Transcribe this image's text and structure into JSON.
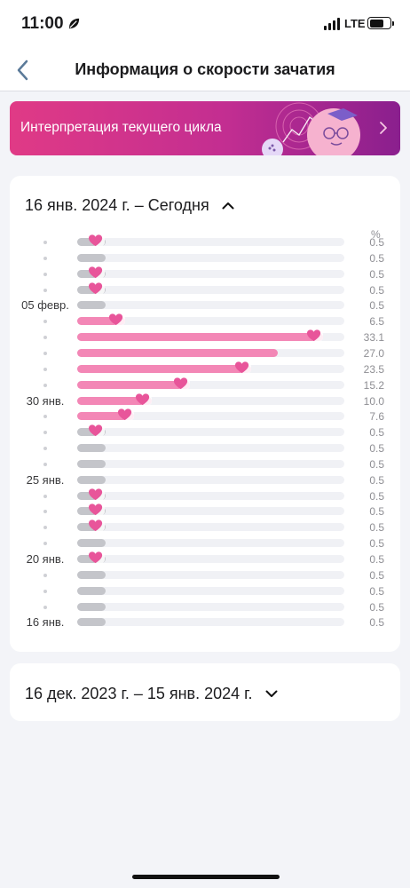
{
  "status_bar": {
    "time": "11:00",
    "network": "LTE"
  },
  "nav": {
    "title": "Информация о скорости зачатия",
    "back_icon": "chevron-left-icon"
  },
  "banner": {
    "text": "Интерпретация текущего цикла",
    "icon": "chevron-right-icon"
  },
  "colors": {
    "accent_pink": "#f387b6",
    "bar_grey": "#c4c5ca",
    "heart": "#e8559a"
  },
  "current_cycle": {
    "range_label": "16 янв. 2024 г. – Сегодня",
    "expanded": true,
    "unit": "%",
    "rows": [
      {
        "label": "",
        "value": "0.5",
        "heart": true
      },
      {
        "label": "",
        "value": "0.5",
        "heart": false
      },
      {
        "label": "",
        "value": "0.5",
        "heart": true
      },
      {
        "label": "",
        "value": "0.5",
        "heart": true
      },
      {
        "label": "05 февр.",
        "value": "0.5",
        "heart": false
      },
      {
        "label": "",
        "value": "6.5",
        "heart": true
      },
      {
        "label": "",
        "value": "33.1",
        "heart": true
      },
      {
        "label": "",
        "value": "27.0",
        "heart": false
      },
      {
        "label": "",
        "value": "23.5",
        "heart": true
      },
      {
        "label": "",
        "value": "15.2",
        "heart": true
      },
      {
        "label": "30 янв.",
        "value": "10.0",
        "heart": true
      },
      {
        "label": "",
        "value": "7.6",
        "heart": true
      },
      {
        "label": "",
        "value": "0.5",
        "heart": true
      },
      {
        "label": "",
        "value": "0.5",
        "heart": false
      },
      {
        "label": "",
        "value": "0.5",
        "heart": false
      },
      {
        "label": "25 янв.",
        "value": "0.5",
        "heart": false
      },
      {
        "label": "",
        "value": "0.5",
        "heart": true
      },
      {
        "label": "",
        "value": "0.5",
        "heart": true
      },
      {
        "label": "",
        "value": "0.5",
        "heart": true
      },
      {
        "label": "",
        "value": "0.5",
        "heart": false
      },
      {
        "label": "20 янв.",
        "value": "0.5",
        "heart": true
      },
      {
        "label": "",
        "value": "0.5",
        "heart": false
      },
      {
        "label": "",
        "value": "0.5",
        "heart": false
      },
      {
        "label": "",
        "value": "0.5",
        "heart": false
      },
      {
        "label": "16 янв.",
        "value": "0.5",
        "heart": false
      }
    ]
  },
  "previous_cycle": {
    "range_label": "16 дек. 2023 г. – 15 янв. 2024 г.",
    "expanded": false
  }
}
